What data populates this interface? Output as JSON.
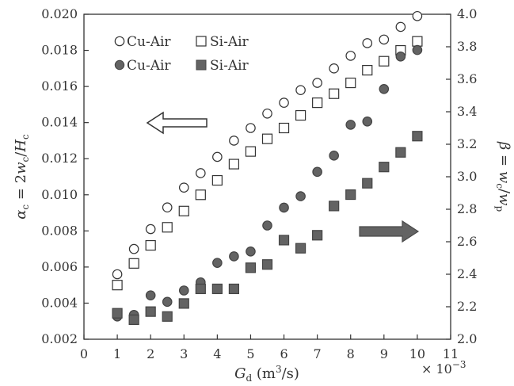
{
  "chart_data": {
    "type": "scatter",
    "title": "",
    "xlabel": {
      "main": "G",
      "sub": "d",
      "unit_open": " (m",
      "unit_sup": "3",
      "unit_close": "/s)"
    },
    "x_multiplier": {
      "prefix": "× 10",
      "exponent": "−3"
    },
    "ylabel_left": {
      "a": "α",
      "a_sub": "c",
      "eq": " = 2",
      "w": "w",
      "w_sub": "c",
      "slash": "/",
      "h": "H",
      "h_sub": "c"
    },
    "ylabel_right": {
      "b": "β",
      "eq": " = ",
      "w1": "w",
      "w1_sub": "c",
      "slash": "/",
      "w2": "w",
      "w2_sub": "p"
    },
    "xlim": [
      0,
      11
    ],
    "ylim_left": [
      0.002,
      0.02
    ],
    "ylim_right": [
      2.0,
      4.0
    ],
    "x_ticks": [
      "0",
      "1",
      "2",
      "3",
      "4",
      "5",
      "6",
      "7",
      "8",
      "9",
      "10",
      "11"
    ],
    "y_left_ticks": [
      "0.002",
      "0.004",
      "0.006",
      "0.008",
      "0.010",
      "0.012",
      "0.014",
      "0.016",
      "0.018",
      "0.020"
    ],
    "y_right_ticks": [
      "2.0",
      "2.2",
      "2.4",
      "2.6",
      "2.8",
      "3.0",
      "3.2",
      "3.4",
      "3.6",
      "3.8",
      "4.0"
    ],
    "legend_placement": "top-left",
    "grid": false,
    "colors": {
      "filled": "#636363",
      "outline": "#333333",
      "axis": "#333333"
    },
    "arrows": [
      {
        "direction": "left",
        "style": "hollow",
        "indicates": "left axis"
      },
      {
        "direction": "right",
        "style": "filled",
        "indicates": "right axis"
      }
    ],
    "series": [
      {
        "name": "Cu-Air",
        "axis": "left",
        "marker": "circle",
        "fill": "open",
        "x": [
          1,
          1.5,
          2,
          2.5,
          3,
          3.5,
          4,
          4.5,
          5,
          5.5,
          6,
          6.5,
          7,
          7.5,
          8,
          8.5,
          9,
          9.5,
          10
        ],
        "y": [
          0.0056,
          0.007,
          0.0081,
          0.0093,
          0.0104,
          0.0112,
          0.0121,
          0.013,
          0.0137,
          0.0145,
          0.0151,
          0.0158,
          0.0162,
          0.017,
          0.0177,
          0.0184,
          0.0186,
          0.0193,
          0.0199
        ]
      },
      {
        "name": "Si-Air",
        "axis": "left",
        "marker": "square",
        "fill": "open",
        "x": [
          1,
          1.5,
          2,
          2.5,
          3,
          3.5,
          4,
          4.5,
          5,
          5.5,
          6,
          6.5,
          7,
          7.5,
          8,
          8.5,
          9,
          9.5,
          10
        ],
        "y": [
          0.005,
          0.0062,
          0.0072,
          0.0082,
          0.0091,
          0.01,
          0.0108,
          0.0117,
          0.0124,
          0.0131,
          0.0137,
          0.0144,
          0.0151,
          0.0156,
          0.0162,
          0.0169,
          0.0174,
          0.018,
          0.0185
        ]
      },
      {
        "name": "Cu-Air",
        "axis": "right",
        "marker": "circle",
        "fill": "filled",
        "x": [
          1,
          1.5,
          2,
          2.5,
          3,
          3.5,
          4,
          4.5,
          5,
          5.5,
          6,
          6.5,
          7,
          7.5,
          8,
          8.5,
          9,
          9.5,
          10
        ],
        "y": [
          2.14,
          2.15,
          2.27,
          2.23,
          2.3,
          2.35,
          2.47,
          2.51,
          2.54,
          2.7,
          2.81,
          2.88,
          3.03,
          3.13,
          3.32,
          3.34,
          3.54,
          3.74,
          3.78
        ]
      },
      {
        "name": "Si-Air",
        "axis": "right",
        "marker": "square",
        "fill": "filled",
        "x": [
          1,
          1.5,
          2,
          2.5,
          3,
          3.5,
          4,
          4.5,
          5,
          5.5,
          6,
          6.5,
          7,
          7.5,
          8,
          8.5,
          9,
          9.5,
          10
        ],
        "y": [
          2.16,
          2.12,
          2.17,
          2.14,
          2.22,
          2.31,
          2.31,
          2.31,
          2.44,
          2.46,
          2.61,
          2.56,
          2.64,
          2.82,
          2.89,
          2.96,
          3.06,
          3.15,
          3.25
        ]
      }
    ]
  }
}
